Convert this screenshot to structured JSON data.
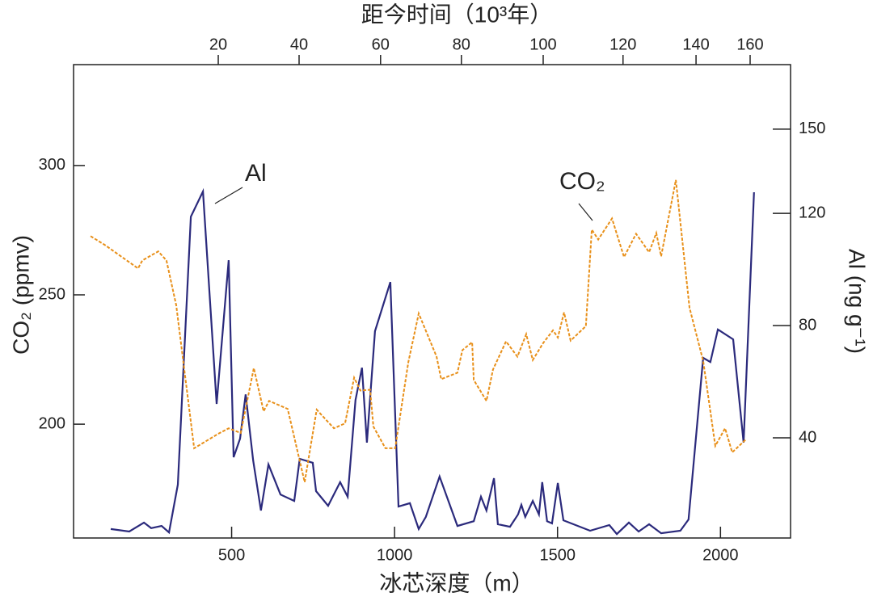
{
  "chart_data": {
    "type": "line",
    "xlabel": "冰芯深度（m）",
    "ylabel": "CO₂ (ppmv)",
    "y2label": "Al (ng g⁻¹)",
    "x2label": "距今时间（10³年）",
    "xlim": [
      15,
      2215
    ],
    "xticks": [
      500,
      1000,
      1500,
      2000
    ],
    "ylim": [
      156,
      339
    ],
    "yticks": [
      200,
      250,
      300
    ],
    "y2lim": [
      4.3,
      173
    ],
    "y2ticks": [
      40,
      80,
      120,
      150
    ],
    "x2ticks": [
      20,
      40,
      60,
      80,
      100,
      120,
      140,
      160
    ],
    "x2tick_depths": [
      459,
      707,
      957,
      1205,
      1456,
      1701,
      1925,
      2091
    ],
    "series": [
      {
        "name": "Al",
        "color": "#2b2a7c",
        "axis": "y2",
        "dashed": false,
        "x": [
          129,
          186,
          231,
          253,
          285,
          308,
          335,
          375,
          412,
          454,
          491,
          506,
          526,
          543,
          566,
          590,
          613,
          650,
          692,
          709,
          749,
          759,
          796,
          833,
          856,
          880,
          900,
          915,
          940,
          987,
          1012,
          1047,
          1074,
          1096,
          1138,
          1193,
          1243,
          1265,
          1282,
          1305,
          1317,
          1354,
          1379,
          1389,
          1401,
          1424,
          1443,
          1453,
          1468,
          1483,
          1501,
          1518,
          1600,
          1659,
          1682,
          1719,
          1749,
          1781,
          1818,
          1877,
          1902,
          1947,
          1969,
          1992,
          2039,
          2071,
          2103
        ],
        "values": [
          7.5,
          6.6,
          9.8,
          7.8,
          8.6,
          6.3,
          23.3,
          118.8,
          127.8,
          52.1,
          103.3,
          33.1,
          39.7,
          55.5,
          31.9,
          14.1,
          30.5,
          19.8,
          17.5,
          32.5,
          31.1,
          21.0,
          15.8,
          24.2,
          19.0,
          53.5,
          65.0,
          38.3,
          78.0,
          95.5,
          15.5,
          16.7,
          7.5,
          11.8,
          26.2,
          8.6,
          10.3,
          19.0,
          14.1,
          25.6,
          9.2,
          8.3,
          12.7,
          16.1,
          11.8,
          17.5,
          12.7,
          24.2,
          10.3,
          9.5,
          23.9,
          10.6,
          6.9,
          8.9,
          5.7,
          9.8,
          6.6,
          9.2,
          6.0,
          6.9,
          10.9,
          68.5,
          67.0,
          78.6,
          75.1,
          38.3,
          127.5
        ]
      },
      {
        "name": "CO₂",
        "color": "#e8901a",
        "axis": "y",
        "dashed": true,
        "x": [
          67,
          112,
          213,
          226,
          275,
          300,
          330,
          385,
          459,
          491,
          528,
          568,
          598,
          615,
          672,
          724,
          761,
          814,
          848,
          876,
          895,
          925,
          935,
          972,
          1002,
          1042,
          1074,
          1129,
          1143,
          1193,
          1208,
          1238,
          1243,
          1282,
          1302,
          1342,
          1377,
          1404,
          1424,
          1456,
          1486,
          1501,
          1520,
          1540,
          1587,
          1605,
          1625,
          1667,
          1704,
          1741,
          1781,
          1803,
          1818,
          1863,
          1905,
          1947,
          1984,
          2014,
          2036,
          2078
        ],
        "values": [
          272.7,
          269.2,
          260.2,
          263.3,
          266.8,
          263.3,
          246.0,
          190.7,
          196.3,
          198.4,
          196.6,
          221.7,
          205.0,
          209.0,
          205.9,
          177.6,
          205.6,
          198.4,
          200.3,
          218.0,
          213.0,
          213.3,
          199.1,
          190.7,
          190.7,
          223.9,
          242.8,
          226.1,
          217.4,
          219.9,
          228.6,
          231.7,
          217.1,
          209.0,
          221.1,
          232.0,
          226.1,
          234.8,
          224.8,
          231.4,
          236.3,
          233.5,
          243.2,
          232.3,
          237.9,
          275.2,
          271.4,
          279.5,
          264.6,
          273.6,
          266.5,
          273.9,
          264.9,
          294.4,
          245.0,
          224.5,
          191.6,
          198.4,
          189.1,
          194.1
        ]
      }
    ]
  }
}
